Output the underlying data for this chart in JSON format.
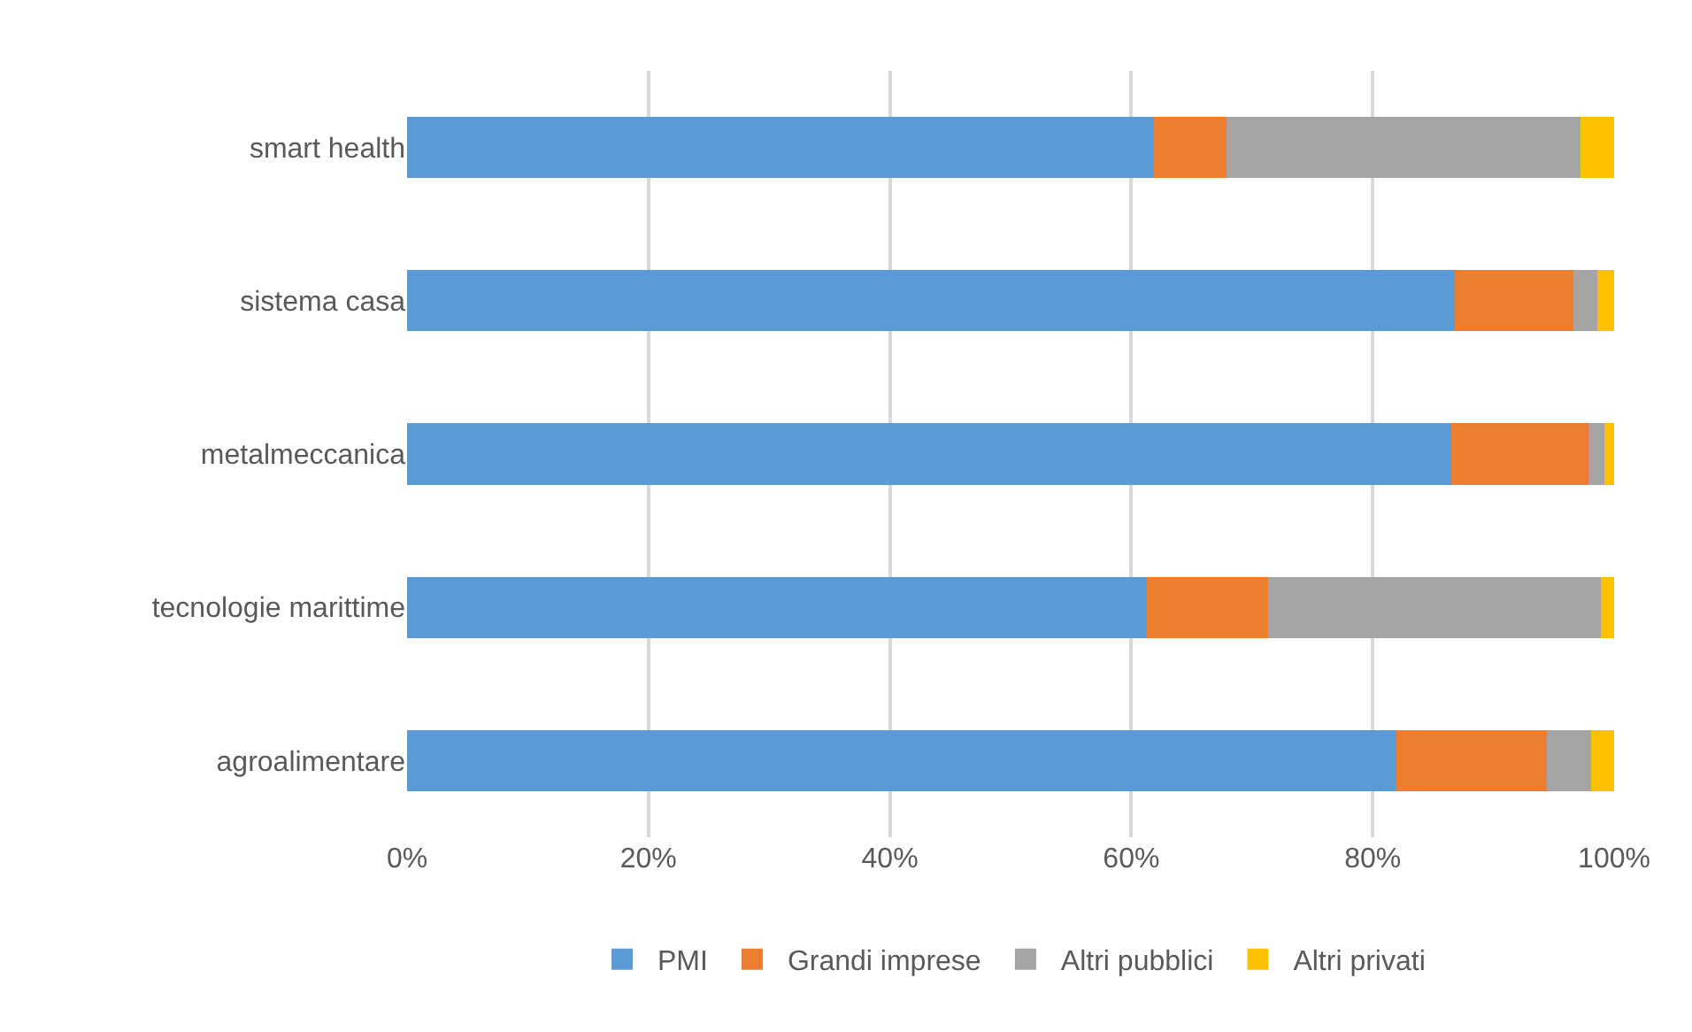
{
  "chart_data": {
    "type": "bar",
    "orientation": "horizontal",
    "stacked": true,
    "categories": [
      "smart health",
      "sistema casa",
      "metalmeccanica",
      "tecnologie marittime",
      "agroalimentare"
    ],
    "series": [
      {
        "name": "PMI",
        "color": "#5b9bd5",
        "values": [
          61.9,
          86.8,
          86.5,
          61.3,
          82.0
        ]
      },
      {
        "name": "Grandi imprese",
        "color": "#ed7d31",
        "values": [
          6.0,
          9.8,
          11.4,
          10.0,
          12.4
        ]
      },
      {
        "name": "Altri pubblici",
        "color": "#a5a5a5",
        "values": [
          29.3,
          2.0,
          1.3,
          27.6,
          3.7
        ]
      },
      {
        "name": "Altri privati",
        "color": "#ffc000",
        "values": [
          2.8,
          1.4,
          0.8,
          1.1,
          1.9
        ]
      }
    ],
    "xlim": [
      0,
      100
    ],
    "xticks": [
      {
        "value": 0,
        "label": "0%"
      },
      {
        "value": 20,
        "label": "20%"
      },
      {
        "value": 40,
        "label": "40%"
      },
      {
        "value": 60,
        "label": "60%"
      },
      {
        "value": 80,
        "label": "80%"
      },
      {
        "value": 100,
        "label": "100%"
      }
    ],
    "grid": "x",
    "legend": "bottom"
  }
}
